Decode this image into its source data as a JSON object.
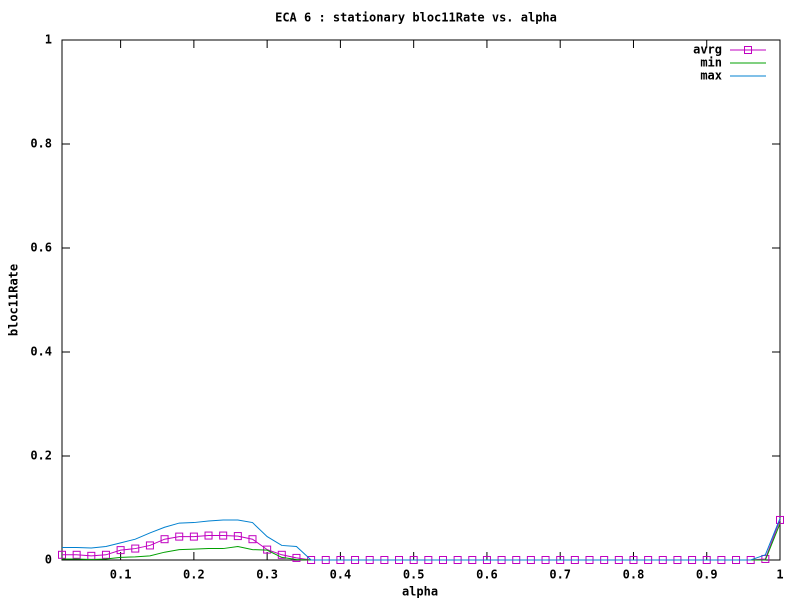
{
  "chart_data": {
    "type": "line",
    "title": "ECA 6 : stationary bloc11Rate vs. alpha",
    "x_label": "alpha",
    "y_label": "bloc11Rate",
    "x": [
      0.02,
      0.04,
      0.06,
      0.08,
      0.1,
      0.12,
      0.14,
      0.16,
      0.18,
      0.2,
      0.22,
      0.24,
      0.26,
      0.28,
      0.3,
      0.32,
      0.34,
      0.36,
      0.38,
      0.4,
      0.42,
      0.44,
      0.46,
      0.48,
      0.5,
      0.52,
      0.54,
      0.56,
      0.58,
      0.6,
      0.62,
      0.64,
      0.66,
      0.68,
      0.7,
      0.72,
      0.74,
      0.76,
      0.78,
      0.8,
      0.82,
      0.84,
      0.86,
      0.88,
      0.9,
      0.92,
      0.94,
      0.96,
      0.98,
      1
    ],
    "series": [
      {
        "name": "avrg",
        "color": "#c000c0",
        "marker": "square",
        "values": [
          0.01,
          0.01,
          0.008,
          0.01,
          0.019,
          0.022,
          0.028,
          0.04,
          0.045,
          0.045,
          0.047,
          0.047,
          0.046,
          0.04,
          0.02,
          0.01,
          0.004,
          0,
          0,
          0,
          0,
          0,
          0,
          0,
          0,
          0,
          0,
          0,
          0,
          0,
          0,
          0,
          0,
          0,
          0,
          0,
          0,
          0,
          0,
          0,
          0,
          0,
          0,
          0,
          0,
          0,
          0,
          0,
          0.002,
          0.077
        ]
      },
      {
        "name": "min",
        "color": "#00a000",
        "values": [
          0.002,
          0.002,
          0.001,
          0.002,
          0.005,
          0.006,
          0.008,
          0.015,
          0.02,
          0.021,
          0.022,
          0.022,
          0.026,
          0.02,
          0.019,
          0.005,
          0.001,
          0,
          0,
          0,
          0,
          0,
          0,
          0,
          0,
          0,
          0,
          0,
          0,
          0,
          0,
          0,
          0,
          0,
          0,
          0,
          0,
          0,
          0,
          0,
          0,
          0,
          0,
          0,
          0,
          0,
          0,
          0,
          0,
          0.07
        ]
      },
      {
        "name": "max",
        "color": "#0080d0",
        "values": [
          0.024,
          0.024,
          0.023,
          0.026,
          0.033,
          0.04,
          0.052,
          0.063,
          0.071,
          0.072,
          0.075,
          0.077,
          0.077,
          0.072,
          0.045,
          0.028,
          0.026,
          0,
          0,
          0,
          0,
          0,
          0,
          0,
          0,
          0,
          0,
          0,
          0,
          0,
          0,
          0,
          0,
          0,
          0,
          0,
          0,
          0,
          0,
          0,
          0,
          0,
          0,
          0,
          0,
          0,
          0,
          0,
          0.01,
          0.08
        ]
      }
    ],
    "xlim": [
      0.02,
      1
    ],
    "ylim": [
      0,
      1
    ],
    "xticks": [
      0.1,
      0.2,
      0.3,
      0.4,
      0.5,
      0.6,
      0.7,
      0.8,
      0.9,
      1
    ],
    "yticks": [
      0,
      0.2,
      0.4,
      0.6,
      0.8,
      1
    ],
    "legend": "top-right"
  }
}
